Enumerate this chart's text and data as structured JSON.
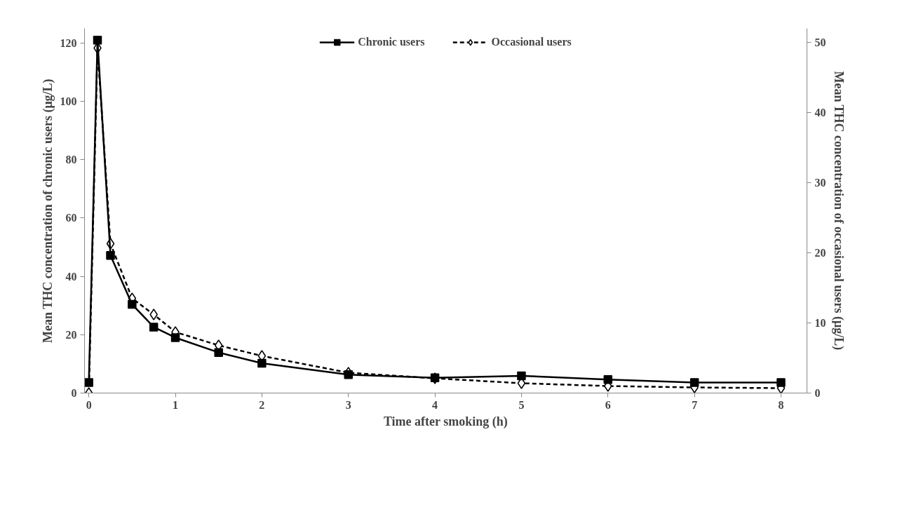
{
  "chart_data": {
    "type": "line",
    "xlabel": "Time after smoking (h)",
    "ylabel": "Mean THC concentration of chronic users (μg/L)",
    "y2label": "Mean THC concentration of occasional users (μg/L)",
    "x": [
      0,
      0.1,
      0.25,
      0.5,
      0.75,
      1,
      1.5,
      2,
      3,
      4,
      5,
      6,
      7,
      8
    ],
    "series": [
      {
        "name": "Chronic users",
        "color": "#000000",
        "marker": "square",
        "line_style": "solid",
        "values": [
          3.6,
          121,
          47.2,
          30.4,
          22.6,
          19.0,
          13.9,
          10.2,
          6.3,
          5.2,
          5.9,
          4.6,
          3.6,
          3.6
        ]
      },
      {
        "name": "Occasional users",
        "color": "#000000",
        "marker": "diamond",
        "line_style": "dashed",
        "axis": "y2",
        "values": [
          0,
          49.2,
          21.3,
          13.5,
          11.2,
          8.7,
          6.8,
          5.3,
          2.9,
          2.1,
          1.4,
          1.0,
          0.8,
          0.7
        ]
      }
    ],
    "xlim": [
      -0.05,
      8.3
    ],
    "xticks": [
      0,
      1,
      2,
      3,
      4,
      5,
      6,
      7,
      8
    ],
    "ylim": [
      0,
      125
    ],
    "yticks": [
      0,
      20,
      40,
      60,
      80,
      100,
      120
    ],
    "y2lim": [
      0,
      52
    ],
    "y2ticks": [
      0,
      10,
      20,
      30,
      40,
      50
    ],
    "grid": false,
    "legend": "top"
  }
}
